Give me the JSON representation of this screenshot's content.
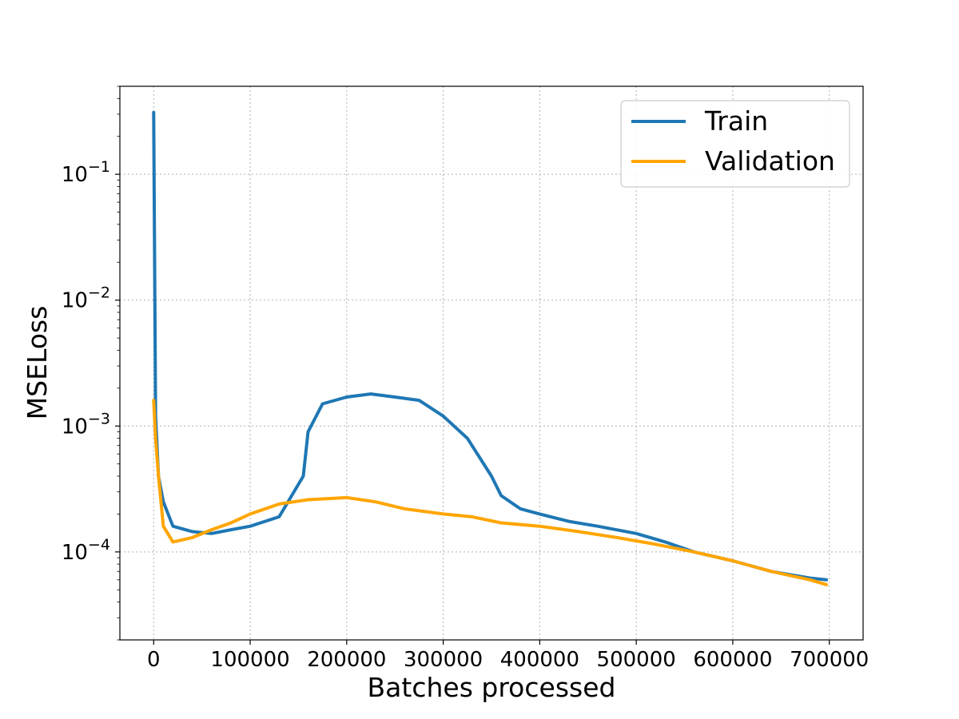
{
  "chart_data": {
    "type": "line",
    "title": "",
    "xlabel": "Batches processed",
    "ylabel": "MSELoss",
    "x_scale": "linear",
    "y_scale": "log",
    "xlim": [
      -35000,
      735000
    ],
    "ylim": [
      2e-05,
      0.5
    ],
    "x_ticks": [
      0,
      100000,
      200000,
      300000,
      400000,
      500000,
      600000,
      700000
    ],
    "x_tick_labels": [
      "0",
      "100000",
      "200000",
      "300000",
      "400000",
      "500000",
      "600000",
      "700000"
    ],
    "y_ticks": [
      0.0001,
      0.001,
      0.01,
      0.1
    ],
    "y_tick_labels": [
      {
        "base": "10",
        "exp": "−4"
      },
      {
        "base": "10",
        "exp": "−3"
      },
      {
        "base": "10",
        "exp": "−2"
      },
      {
        "base": "10",
        "exp": "−1"
      }
    ],
    "grid": true,
    "legend": {
      "position": "top-right"
    },
    "series": [
      {
        "name": "Train",
        "color": "#1f77b4",
        "x": [
          0,
          2000,
          5000,
          10000,
          20000,
          40000,
          60000,
          80000,
          100000,
          130000,
          155000,
          160000,
          175000,
          200000,
          225000,
          250000,
          275000,
          300000,
          325000,
          350000,
          360000,
          380000,
          400000,
          430000,
          460000,
          500000,
          530000,
          560000,
          600000,
          640000,
          680000,
          697000
        ],
        "y": [
          0.31,
          0.0012,
          0.0004,
          0.00025,
          0.00016,
          0.000145,
          0.00014,
          0.00015,
          0.00016,
          0.00019,
          0.0004,
          0.0009,
          0.0015,
          0.0017,
          0.0018,
          0.0017,
          0.0016,
          0.0012,
          0.0008,
          0.0004,
          0.00028,
          0.00022,
          0.0002,
          0.000175,
          0.00016,
          0.00014,
          0.00012,
          0.0001,
          8.5e-05,
          7e-05,
          6.2e-05,
          6e-05
        ]
      },
      {
        "name": "Validation",
        "color": "#ffa500",
        "x": [
          0,
          2000,
          5000,
          10000,
          20000,
          40000,
          60000,
          80000,
          100000,
          130000,
          160000,
          200000,
          230000,
          260000,
          300000,
          330000,
          360000,
          400000,
          440000,
          480000,
          520000,
          560000,
          600000,
          640000,
          680000,
          697000
        ],
        "y": [
          0.0016,
          0.0008,
          0.0004,
          0.00016,
          0.00012,
          0.00013,
          0.00015,
          0.00017,
          0.0002,
          0.00024,
          0.00026,
          0.00027,
          0.00025,
          0.00022,
          0.0002,
          0.00019,
          0.00017,
          0.00016,
          0.000145,
          0.00013,
          0.000115,
          0.0001,
          8.5e-05,
          7e-05,
          6e-05,
          5.5e-05
        ]
      }
    ]
  }
}
